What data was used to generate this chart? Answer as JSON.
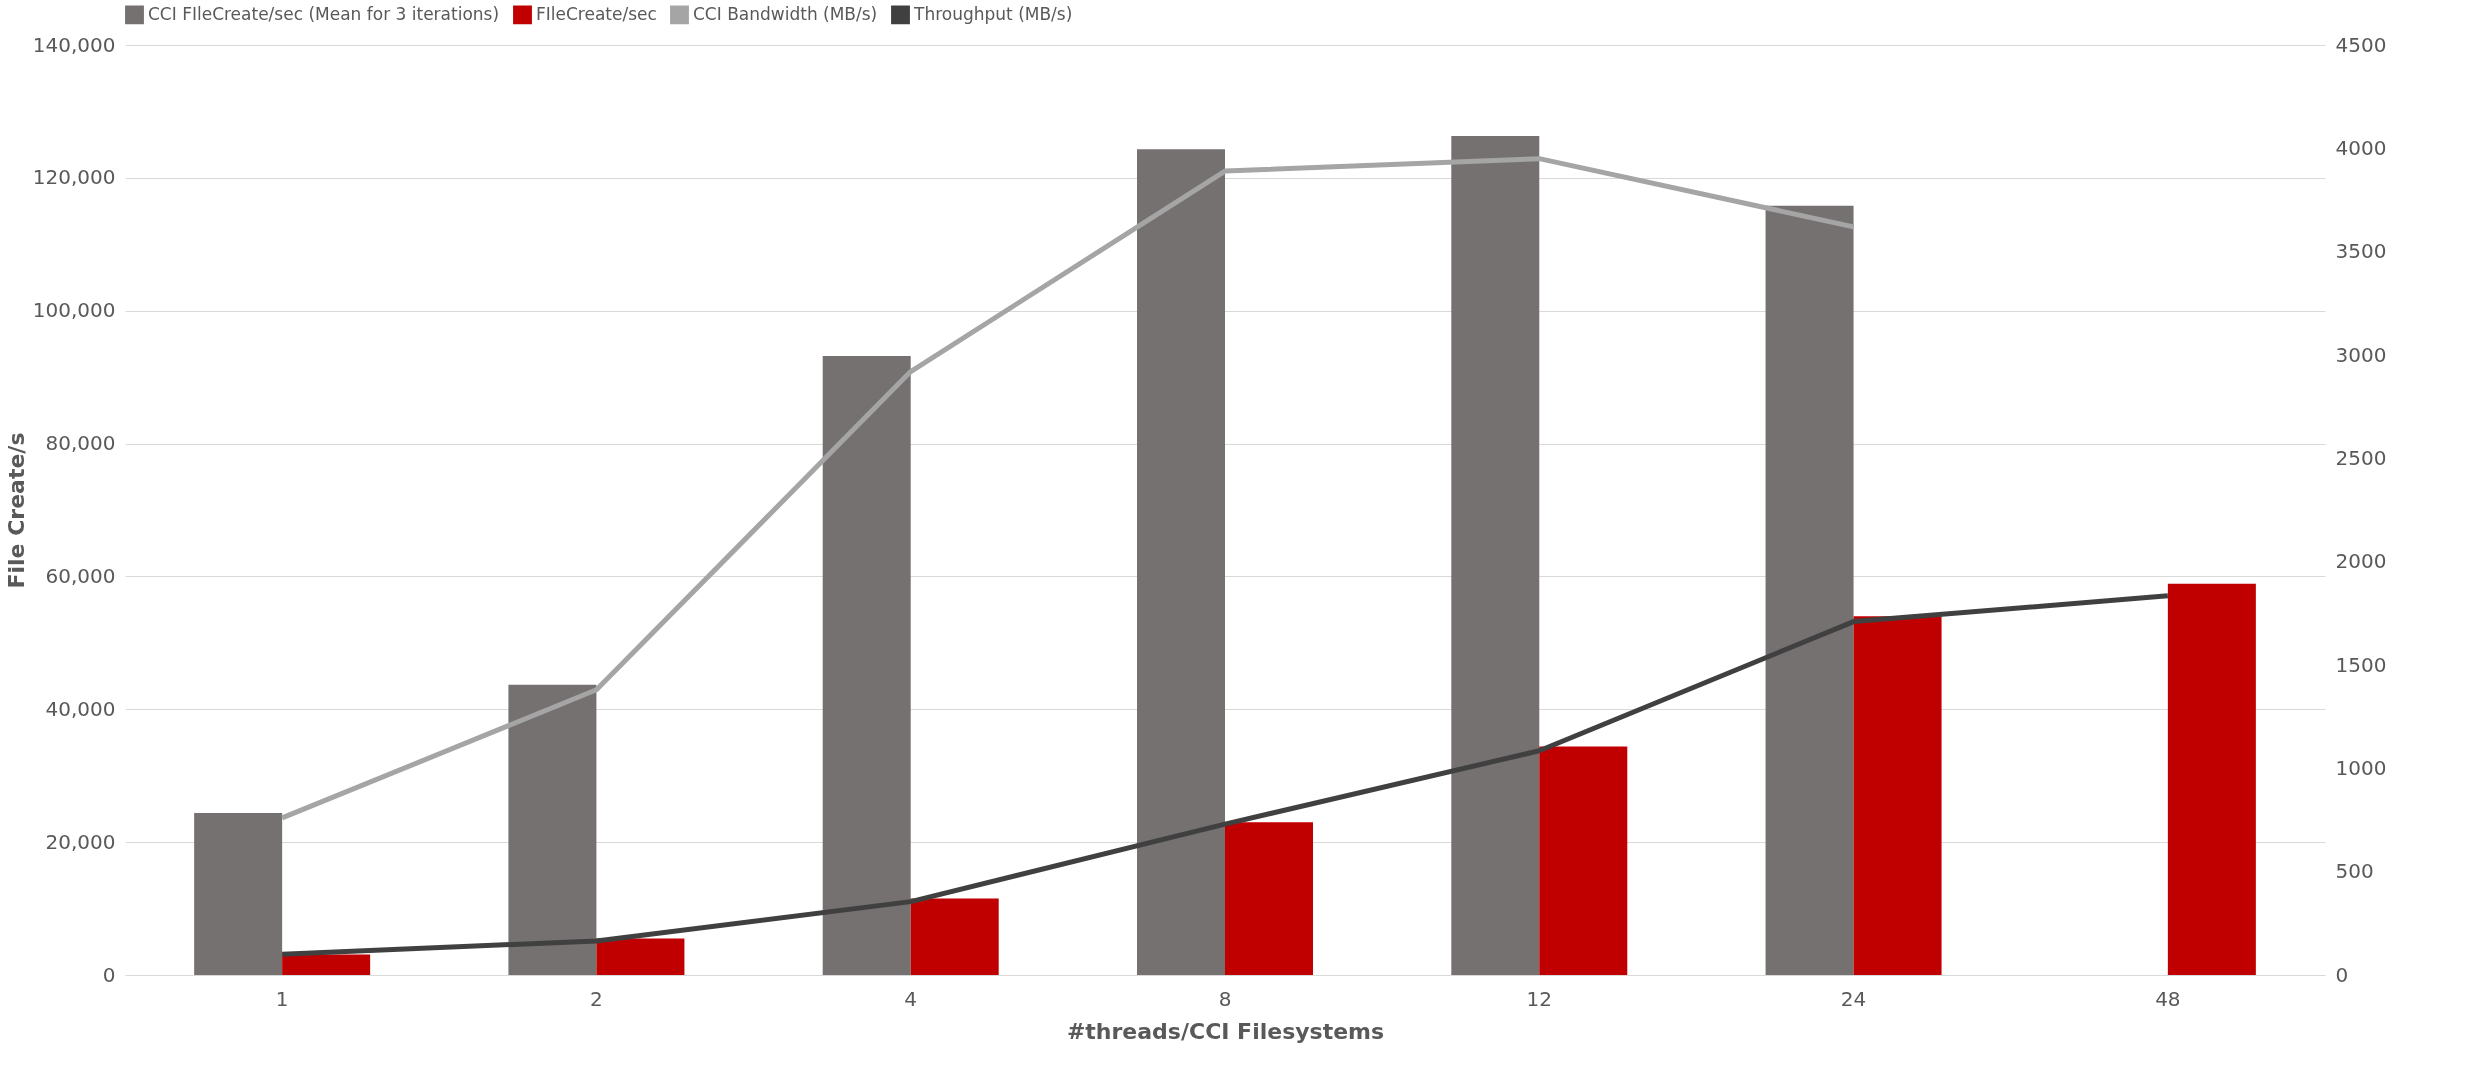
{
  "chart_data": {
    "type": "bar",
    "xlabel": "#threads/CCI Filesystems",
    "ylabel": "File Create/s",
    "categories": [
      "1",
      "2",
      "4",
      "8",
      "12",
      "24",
      "48"
    ],
    "series": [
      {
        "name": "CCI FIleCreate/sec (Mean for 3 iterations)",
        "color": "#767171",
        "values": [
          24400,
          43700,
          93200,
          124300,
          126300,
          115800,
          null
        ]
      },
      {
        "name": "FIleCreate/sec",
        "color": "#c00000",
        "values": [
          3100,
          5500,
          11500,
          23000,
          34400,
          54000,
          58900
        ]
      },
      {
        "name": "CCI Bandwidth (MB/s)",
        "type": "line",
        "axis": "y2",
        "color": "#a5a5a5",
        "values": [
          760,
          1380,
          2920,
          3890,
          3950,
          3620,
          null
        ]
      },
      {
        "name": "Throughput (MB/s)",
        "type": "line",
        "axis": "y2",
        "color": "#404040",
        "values": [
          100,
          165,
          355,
          730,
          1085,
          1710,
          1835
        ]
      }
    ],
    "ylim": [
      0,
      140000
    ],
    "yticks": [
      {
        "value": 0,
        "label": "0"
      },
      {
        "value": 20000,
        "label": "20,000"
      },
      {
        "value": 40000,
        "label": "40,000"
      },
      {
        "value": 60000,
        "label": "60,000"
      },
      {
        "value": 80000,
        "label": "80,000"
      },
      {
        "value": 100000,
        "label": "100,000"
      },
      {
        "value": 120000,
        "label": "120,000"
      },
      {
        "value": 140000,
        "label": "140,000"
      }
    ],
    "y2lim": [
      0,
      4500
    ],
    "y2ticks": [
      0,
      500,
      1000,
      1500,
      2000,
      2500,
      3000,
      3500,
      4000,
      4500
    ],
    "grid": "y",
    "legend": "top",
    "line_style": "solid"
  }
}
